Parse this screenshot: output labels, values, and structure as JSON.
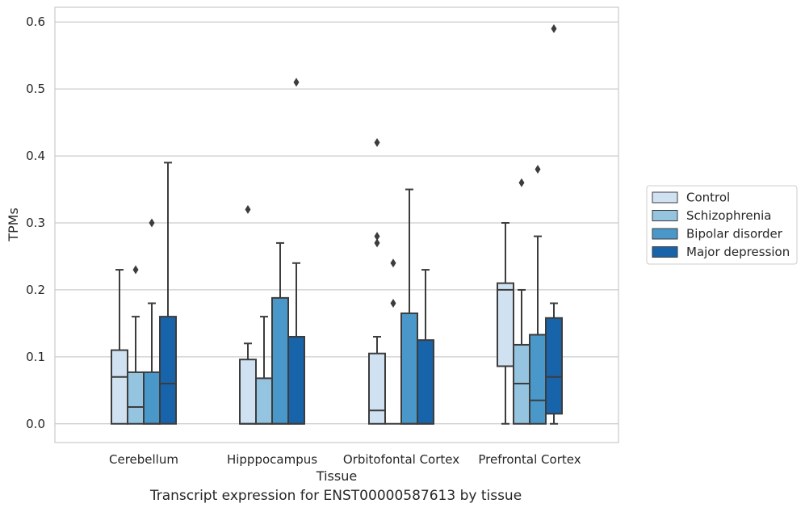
{
  "caption": "Transcript expression for ENST00000587613 by tissue",
  "chart_data": {
    "type": "box",
    "xlabel": "Tissue",
    "ylabel": "TPMs",
    "ylim": [
      -0.028,
      0.622
    ],
    "yticks": [
      0.0,
      0.1,
      0.2,
      0.3,
      0.4,
      0.5,
      0.6
    ],
    "ytick_labels": [
      "0.0",
      "0.1",
      "0.2",
      "0.3",
      "0.4",
      "0.5",
      "0.6"
    ],
    "grid": true,
    "legend_position": "right",
    "categories": [
      "Cerebellum",
      "Hipppocampus",
      "Orbitofontal Cortex",
      "Prefrontal Cortex"
    ],
    "series": [
      {
        "name": "Control",
        "color": "#d0e1f2",
        "boxes": [
          {
            "q1": 0.0,
            "median": 0.07,
            "q3": 0.11,
            "whisker_low": 0.0,
            "whisker_high": 0.23,
            "outliers": []
          },
          {
            "q1": 0.0,
            "median": 0.0,
            "q3": 0.096,
            "whisker_low": 0.0,
            "whisker_high": 0.12,
            "outliers": [
              0.32
            ]
          },
          {
            "q1": 0.0,
            "median": 0.02,
            "q3": 0.105,
            "whisker_low": 0.0,
            "whisker_high": 0.13,
            "outliers": [
              0.27,
              0.28,
              0.42
            ]
          },
          {
            "q1": 0.086,
            "median": 0.2,
            "q3": 0.21,
            "whisker_low": 0.0,
            "whisker_high": 0.3,
            "outliers": []
          }
        ]
      },
      {
        "name": "Schizophrenia",
        "color": "#94c4df",
        "boxes": [
          {
            "q1": 0.0,
            "median": 0.025,
            "q3": 0.077,
            "whisker_low": 0.0,
            "whisker_high": 0.16,
            "outliers": [
              0.23
            ]
          },
          {
            "q1": 0.0,
            "median": 0.0,
            "q3": 0.068,
            "whisker_low": 0.0,
            "whisker_high": 0.16,
            "outliers": []
          },
          {
            "q1": 0.0,
            "median": 0.0,
            "q3": 0.0,
            "whisker_low": 0.0,
            "whisker_high": 0.0,
            "outliers": [
              0.18,
              0.24
            ]
          },
          {
            "q1": 0.0,
            "median": 0.06,
            "q3": 0.118,
            "whisker_low": 0.0,
            "whisker_high": 0.2,
            "outliers": [
              0.36
            ]
          }
        ]
      },
      {
        "name": "Bipolar disorder",
        "color": "#4a98c9",
        "boxes": [
          {
            "q1": 0.0,
            "median": 0.0,
            "q3": 0.077,
            "whisker_low": 0.0,
            "whisker_high": 0.18,
            "outliers": [
              0.3
            ]
          },
          {
            "q1": 0.0,
            "median": 0.0,
            "q3": 0.188,
            "whisker_low": 0.0,
            "whisker_high": 0.27,
            "outliers": []
          },
          {
            "q1": 0.0,
            "median": 0.0,
            "q3": 0.165,
            "whisker_low": 0.0,
            "whisker_high": 0.35,
            "outliers": []
          },
          {
            "q1": 0.0,
            "median": 0.035,
            "q3": 0.133,
            "whisker_low": 0.0,
            "whisker_high": 0.28,
            "outliers": [
              0.38
            ]
          }
        ]
      },
      {
        "name": "Major depression",
        "color": "#1764ab",
        "boxes": [
          {
            "q1": 0.0,
            "median": 0.06,
            "q3": 0.16,
            "whisker_low": 0.0,
            "whisker_high": 0.39,
            "outliers": []
          },
          {
            "q1": 0.0,
            "median": 0.0,
            "q3": 0.13,
            "whisker_low": 0.0,
            "whisker_high": 0.24,
            "outliers": [
              0.51
            ]
          },
          {
            "q1": 0.0,
            "median": 0.0,
            "q3": 0.125,
            "whisker_low": 0.0,
            "whisker_high": 0.23,
            "outliers": []
          },
          {
            "q1": 0.015,
            "median": 0.07,
            "q3": 0.158,
            "whisker_low": 0.0,
            "whisker_high": 0.18,
            "outliers": [
              0.59
            ]
          }
        ]
      }
    ]
  }
}
